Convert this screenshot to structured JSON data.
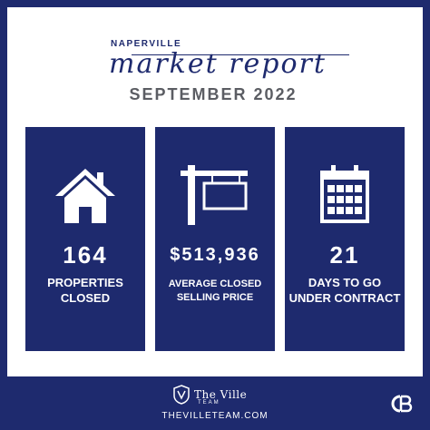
{
  "header": {
    "city": "NAPERVILLE",
    "script_title": "market report",
    "month": "SEPTEMBER 2022"
  },
  "stats": [
    {
      "icon": "house-icon",
      "value": "164",
      "label": "PROPERTIES CLOSED"
    },
    {
      "icon": "sign-icon",
      "value": "$513,936",
      "label": "AVERAGE CLOSED SELLING PRICE"
    },
    {
      "icon": "calendar-icon",
      "value": "21",
      "label": "DAYS TO GO UNDER CONTRACT"
    }
  ],
  "footer": {
    "brand_name": "The Ville",
    "brand_sub": "TEAM",
    "website": "THEVILLETEAM.COM"
  },
  "colors": {
    "navy": "#1e2a6e",
    "white": "#ffffff",
    "gray": "#5b5d63"
  }
}
